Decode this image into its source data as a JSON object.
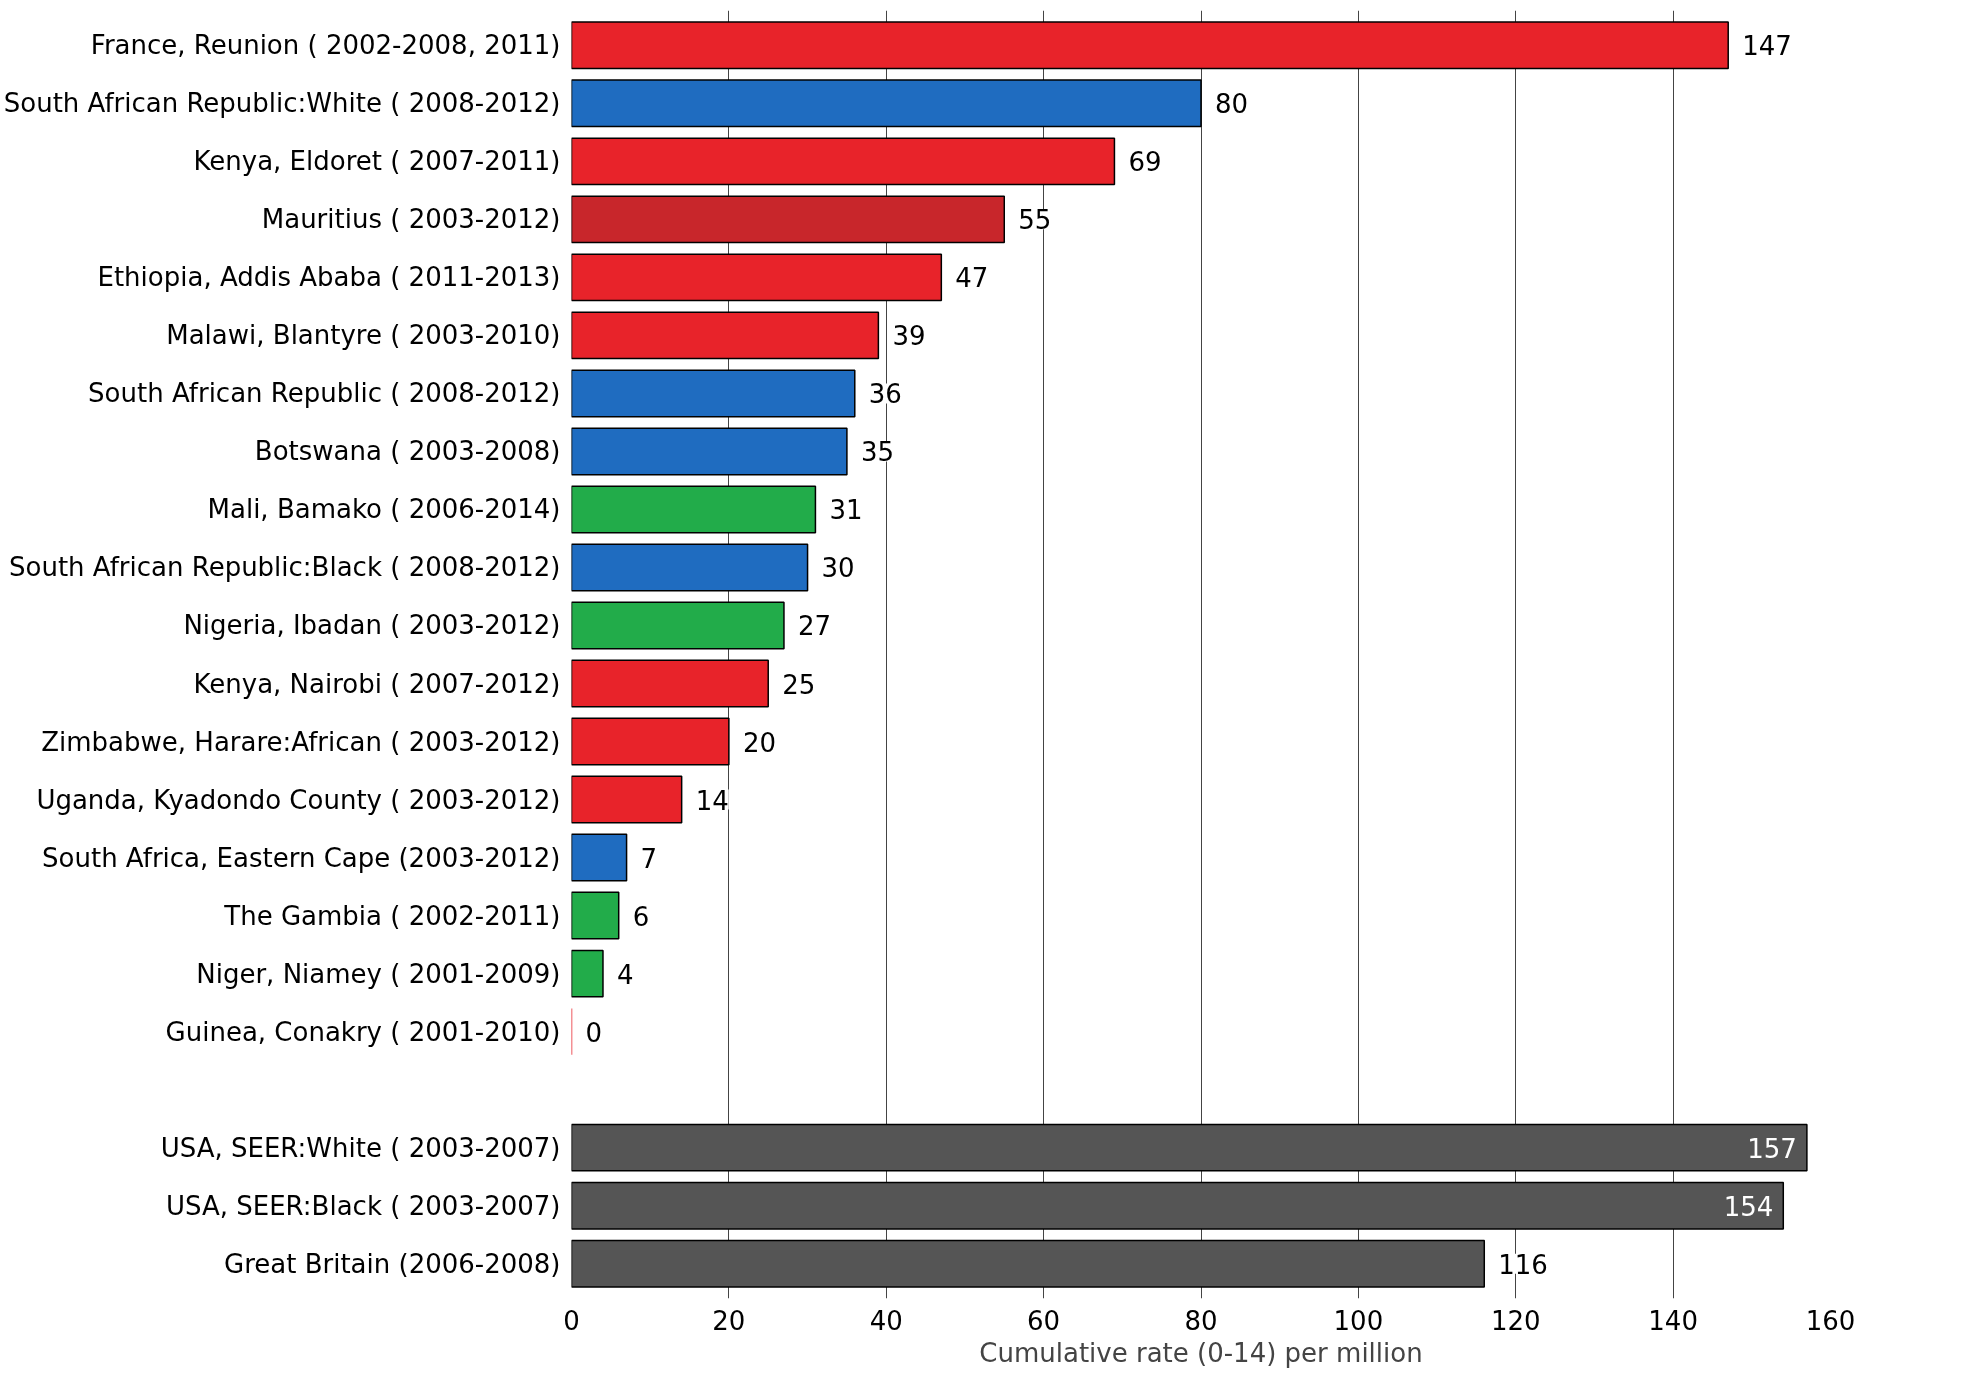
{
  "chart_data": {
    "type": "bar",
    "orientation": "horizontal",
    "xlabel": "Cumulative rate (0-14) per million",
    "categories": [
      "France, Reunion ( 2002-2008, 2011)",
      "South African Republic:White ( 2008-2012)",
      "Kenya, Eldoret ( 2007-2011)",
      "Mauritius ( 2003-2012)",
      "Ethiopia, Addis Ababa ( 2011-2013)",
      "Malawi, Blantyre ( 2003-2010)",
      "South African Republic ( 2008-2012)",
      "Botswana ( 2003-2008)",
      "Mali, Bamako ( 2006-2014)",
      "South African Republic:Black ( 2008-2012)",
      "Nigeria, Ibadan ( 2003-2012)",
      "Kenya, Nairobi ( 2007-2012)",
      "Zimbabwe, Harare:African ( 2003-2012)",
      "Uganda, Kyadondo County ( 2003-2012)",
      "South Africa, Eastern Cape (2003-2012)",
      "The Gambia ( 2002-2011)",
      "Niger, Niamey ( 2001-2009)",
      "Guinea, Conakry ( 2001-2010)",
      null,
      "USA, SEER:White ( 2003-2007)",
      "USA, SEER:Black ( 2003-2007)",
      "Great Britain (2006-2008)"
    ],
    "values": [
      147,
      80,
      69,
      55,
      47,
      39,
      36,
      35,
      31,
      30,
      27,
      25,
      20,
      14,
      7,
      6,
      4,
      0,
      null,
      157,
      154,
      116
    ],
    "colors": [
      "#e8232a",
      "#1f6cc0",
      "#e8232a",
      "#c8262b",
      "#e8232a",
      "#e8232a",
      "#1f6cc0",
      "#1f6cc0",
      "#22ac4a",
      "#1f6cc0",
      "#22ac4a",
      "#e8232a",
      "#e8232a",
      "#e8232a",
      "#1f6cc0",
      "#22ac4a",
      "#22ac4a",
      "#e8232a",
      null,
      "#555555",
      "#555555",
      "#555555"
    ],
    "data_labels": true,
    "xlim": [
      0,
      160
    ],
    "xticks": [
      0,
      20,
      40,
      60,
      80,
      100,
      120,
      140,
      160
    ],
    "grid": "x"
  }
}
